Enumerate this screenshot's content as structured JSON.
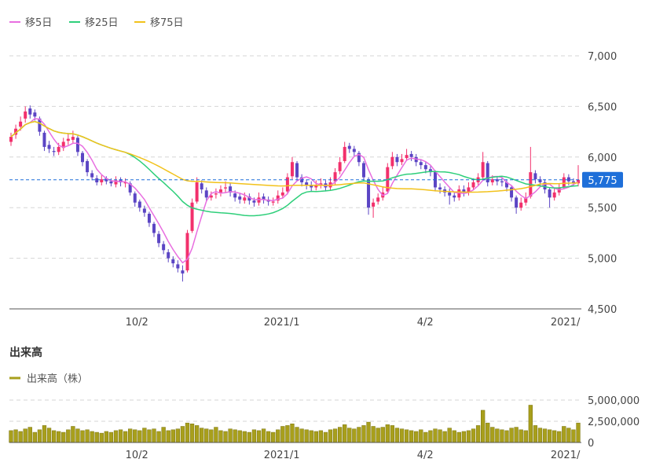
{
  "legend": {
    "ma5": {
      "label": "移5日",
      "color": "#e86ee0"
    },
    "ma25": {
      "label": "移25日",
      "color": "#2ecf7a"
    },
    "ma75": {
      "label": "移75日",
      "color": "#f2c21b"
    }
  },
  "volume_section": {
    "title": "出来高",
    "legend_label": "出来高（株）",
    "color": "#a89f1c"
  },
  "current_price": {
    "value": 5775,
    "label": "5,775",
    "color": "#1e6fd9"
  },
  "colors": {
    "up": "#f2306c",
    "down": "#5b45c4"
  },
  "chart_data": [
    {
      "type": "candlestick",
      "series": [
        {
          "name": "移5日",
          "window": 5
        },
        {
          "name": "移25日",
          "window": 25
        },
        {
          "name": "移75日",
          "window": 75
        }
      ],
      "ylim": [
        4500,
        7000
      ],
      "yticks": [
        {
          "value": 7000,
          "label": "7,000"
        },
        {
          "value": 6500,
          "label": "6,500"
        },
        {
          "value": 6000,
          "label": "6,000"
        },
        {
          "value": 5500,
          "label": "5,500"
        },
        {
          "value": 5000,
          "label": "5,000"
        },
        {
          "value": 4500,
          "label": "4,500"
        }
      ],
      "xticks": [
        {
          "index": 26.4,
          "label": "10/2"
        },
        {
          "index": 56.8,
          "label": "2021/1"
        },
        {
          "index": 86.9,
          "label": "4/2"
        },
        {
          "index": 116.3,
          "label": "2021/"
        }
      ],
      "candles_ohlc": [
        [
          6150,
          6240,
          6110,
          6200
        ],
        [
          6220,
          6320,
          6180,
          6280
        ],
        [
          6300,
          6400,
          6260,
          6350
        ],
        [
          6380,
          6500,
          6340,
          6450
        ],
        [
          6480,
          6510,
          6380,
          6420
        ],
        [
          6440,
          6470,
          6360,
          6400
        ],
        [
          6380,
          6400,
          6210,
          6250
        ],
        [
          6240,
          6260,
          6060,
          6100
        ],
        [
          6120,
          6160,
          6040,
          6080
        ],
        [
          6060,
          6100,
          6010,
          6050
        ],
        [
          6050,
          6140,
          6020,
          6100
        ],
        [
          6090,
          6190,
          6060,
          6150
        ],
        [
          6160,
          6230,
          6120,
          6180
        ],
        [
          6170,
          6260,
          6140,
          6200
        ],
        [
          6190,
          6210,
          6010,
          6050
        ],
        [
          6040,
          6060,
          5910,
          5950
        ],
        [
          5960,
          5980,
          5810,
          5850
        ],
        [
          5840,
          5870,
          5770,
          5800
        ],
        [
          5790,
          5820,
          5720,
          5750
        ],
        [
          5750,
          5820,
          5720,
          5780
        ],
        [
          5790,
          5810,
          5730,
          5760
        ],
        [
          5760,
          5790,
          5710,
          5740
        ],
        [
          5730,
          5810,
          5700,
          5770
        ],
        [
          5780,
          5800,
          5710,
          5750
        ],
        [
          5740,
          5790,
          5700,
          5750
        ],
        [
          5740,
          5760,
          5620,
          5650
        ],
        [
          5640,
          5660,
          5510,
          5550
        ],
        [
          5560,
          5580,
          5460,
          5500
        ],
        [
          5490,
          5520,
          5410,
          5450
        ],
        [
          5440,
          5460,
          5310,
          5350
        ],
        [
          5340,
          5360,
          5210,
          5250
        ],
        [
          5240,
          5270,
          5110,
          5150
        ],
        [
          5140,
          5170,
          5040,
          5080
        ],
        [
          5060,
          5090,
          4960,
          5000
        ],
        [
          4990,
          5020,
          4910,
          4950
        ],
        [
          4940,
          4980,
          4860,
          4900
        ],
        [
          4880,
          4930,
          4770,
          4850
        ],
        [
          4880,
          5280,
          4860,
          5250
        ],
        [
          5270,
          5590,
          5250,
          5550
        ],
        [
          5560,
          5800,
          5540,
          5750
        ],
        [
          5740,
          5770,
          5640,
          5680
        ],
        [
          5670,
          5700,
          5560,
          5600
        ],
        [
          5600,
          5660,
          5570,
          5620
        ],
        [
          5630,
          5690,
          5590,
          5640
        ],
        [
          5650,
          5720,
          5610,
          5680
        ],
        [
          5690,
          5760,
          5650,
          5700
        ],
        [
          5710,
          5740,
          5610,
          5650
        ],
        [
          5640,
          5670,
          5560,
          5600
        ],
        [
          5610,
          5640,
          5540,
          5580
        ],
        [
          5570,
          5650,
          5540,
          5600
        ],
        [
          5610,
          5640,
          5530,
          5570
        ],
        [
          5570,
          5600,
          5510,
          5550
        ],
        [
          5550,
          5650,
          5520,
          5600
        ],
        [
          5610,
          5640,
          5540,
          5580
        ],
        [
          5580,
          5610,
          5520,
          5560
        ],
        [
          5550,
          5600,
          5520,
          5560
        ],
        [
          5570,
          5670,
          5540,
          5620
        ],
        [
          5620,
          5700,
          5590,
          5650
        ],
        [
          5660,
          5840,
          5630,
          5800
        ],
        [
          5810,
          6000,
          5780,
          5950
        ],
        [
          5940,
          5960,
          5760,
          5800
        ],
        [
          5800,
          5830,
          5710,
          5750
        ],
        [
          5750,
          5780,
          5680,
          5720
        ],
        [
          5720,
          5760,
          5660,
          5700
        ],
        [
          5700,
          5770,
          5670,
          5720
        ],
        [
          5720,
          5790,
          5690,
          5740
        ],
        [
          5740,
          5770,
          5660,
          5700
        ],
        [
          5700,
          5800,
          5670,
          5750
        ],
        [
          5760,
          5890,
          5730,
          5850
        ],
        [
          5860,
          6000,
          5830,
          5950
        ],
        [
          5960,
          6150,
          5940,
          6100
        ],
        [
          6110,
          6140,
          6040,
          6080
        ],
        [
          6080,
          6110,
          6010,
          6050
        ],
        [
          6040,
          6060,
          5910,
          5950
        ],
        [
          5940,
          5960,
          5760,
          5800
        ],
        [
          5780,
          5800,
          5430,
          5500
        ],
        [
          5510,
          5590,
          5400,
          5550
        ],
        [
          5560,
          5640,
          5530,
          5600
        ],
        [
          5600,
          5700,
          5570,
          5650
        ],
        [
          5660,
          5940,
          5640,
          5900
        ],
        [
          5910,
          6050,
          5880,
          6000
        ],
        [
          6000,
          6030,
          5910,
          5950
        ],
        [
          5950,
          6030,
          5920,
          5980
        ],
        [
          5990,
          6080,
          5960,
          6020
        ],
        [
          6030,
          6060,
          5960,
          6000
        ],
        [
          6000,
          6030,
          5910,
          5950
        ],
        [
          5950,
          5980,
          5880,
          5920
        ],
        [
          5920,
          5950,
          5840,
          5880
        ],
        [
          5880,
          5910,
          5810,
          5850
        ],
        [
          5850,
          5870,
          5660,
          5700
        ],
        [
          5700,
          5740,
          5640,
          5680
        ],
        [
          5680,
          5710,
          5610,
          5650
        ],
        [
          5650,
          5690,
          5530,
          5620
        ],
        [
          5620,
          5660,
          5560,
          5600
        ],
        [
          5600,
          5720,
          5570,
          5680
        ],
        [
          5680,
          5720,
          5610,
          5650
        ],
        [
          5650,
          5750,
          5620,
          5700
        ],
        [
          5700,
          5790,
          5670,
          5750
        ],
        [
          5750,
          5840,
          5720,
          5800
        ],
        [
          5800,
          6050,
          5770,
          5950
        ],
        [
          5940,
          5960,
          5710,
          5750
        ],
        [
          5750,
          5820,
          5720,
          5780
        ],
        [
          5780,
          5810,
          5720,
          5760
        ],
        [
          5760,
          5800,
          5710,
          5750
        ],
        [
          5750,
          5780,
          5660,
          5700
        ],
        [
          5700,
          5720,
          5560,
          5600
        ],
        [
          5600,
          5620,
          5440,
          5500
        ],
        [
          5500,
          5600,
          5470,
          5550
        ],
        [
          5550,
          5650,
          5520,
          5600
        ],
        [
          5610,
          6100,
          5590,
          5850
        ],
        [
          5840,
          5870,
          5740,
          5780
        ],
        [
          5780,
          5810,
          5710,
          5750
        ],
        [
          5750,
          5780,
          5640,
          5680
        ],
        [
          5680,
          5700,
          5500,
          5600
        ],
        [
          5600,
          5700,
          5570,
          5650
        ],
        [
          5650,
          5740,
          5620,
          5700
        ],
        [
          5700,
          5840,
          5680,
          5800
        ],
        [
          5800,
          5830,
          5720,
          5760
        ],
        [
          5760,
          5790,
          5710,
          5740
        ],
        [
          5740,
          5920,
          5710,
          5775
        ]
      ]
    },
    {
      "type": "bar",
      "series": [
        {
          "name": "出来高（株）"
        }
      ],
      "ylim": [
        0,
        5000000
      ],
      "yticks": [
        {
          "value": 5000000,
          "label": "5,000,000"
        },
        {
          "value": 2500000,
          "label": "2,500,000"
        },
        {
          "value": 0,
          "label": "0"
        }
      ],
      "xticks": [
        {
          "index": 26.4,
          "label": "10/2"
        },
        {
          "index": 56.8,
          "label": "2021/1"
        },
        {
          "index": 86.9,
          "label": "4/2"
        },
        {
          "index": 116.3,
          "label": "2021/"
        }
      ],
      "values": [
        1400000,
        1500000,
        1300000,
        1600000,
        1800000,
        1200000,
        1500000,
        2000000,
        1700000,
        1400000,
        1300000,
        1200000,
        1500000,
        1900000,
        1600000,
        1400000,
        1500000,
        1300000,
        1200000,
        1100000,
        1300000,
        1200000,
        1400000,
        1500000,
        1300000,
        1600000,
        1500000,
        1400000,
        1700000,
        1500000,
        1600000,
        1300000,
        1800000,
        1400000,
        1500000,
        1600000,
        1900000,
        2300000,
        2200000,
        2000000,
        1700000,
        1600000,
        1500000,
        1800000,
        1400000,
        1300000,
        1600000,
        1500000,
        1400000,
        1300000,
        1200000,
        1500000,
        1400000,
        1600000,
        1300000,
        1200000,
        1500000,
        1900000,
        2000000,
        2200000,
        1800000,
        1600000,
        1500000,
        1400000,
        1300000,
        1400000,
        1200000,
        1500000,
        1600000,
        1800000,
        2100000,
        1700000,
        1600000,
        1800000,
        2000000,
        2400000,
        1900000,
        1700000,
        1800000,
        2100000,
        2000000,
        1700000,
        1600000,
        1500000,
        1400000,
        1300000,
        1500000,
        1200000,
        1400000,
        1600000,
        1500000,
        1300000,
        1700000,
        1400000,
        1200000,
        1300000,
        1400000,
        1600000,
        2000000,
        3800000,
        2300000,
        1800000,
        1600000,
        1500000,
        1400000,
        1700000,
        1800000,
        1500000,
        1400000,
        4400000,
        2000000,
        1700000,
        1600000,
        1500000,
        1400000,
        1300000,
        1900000,
        1700000,
        1500000,
        2300000
      ]
    }
  ]
}
